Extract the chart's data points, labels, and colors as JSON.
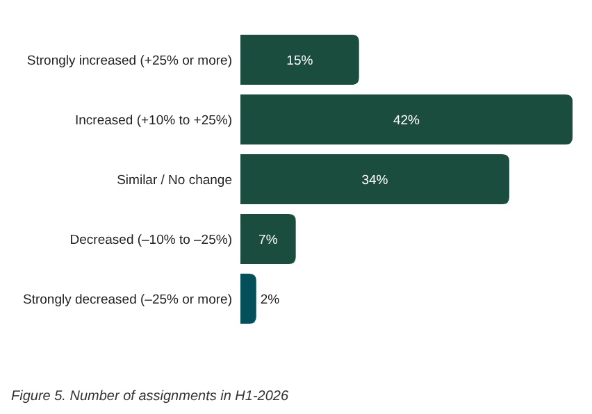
{
  "chart_data": {
    "type": "bar",
    "orientation": "horizontal",
    "categories": [
      "Strongly increased (+25% or more)",
      "Increased (+10% to +25%)",
      "Similar / No change",
      "Decreased (–10% to –25%)",
      "Strongly decreased (–25% or more)"
    ],
    "values": [
      15,
      42,
      34,
      7,
      2
    ],
    "colors": [
      "#1b4d3e",
      "#1b4d3e",
      "#1b4d3e",
      "#1b4d3e",
      "#03505a"
    ],
    "data_labels": true,
    "value_labels": [
      "15%",
      "42%",
      "34%",
      "7%",
      "2%"
    ],
    "annotations": [
      "Figure 5. Number of assignments in H1-2026"
    ]
  }
}
